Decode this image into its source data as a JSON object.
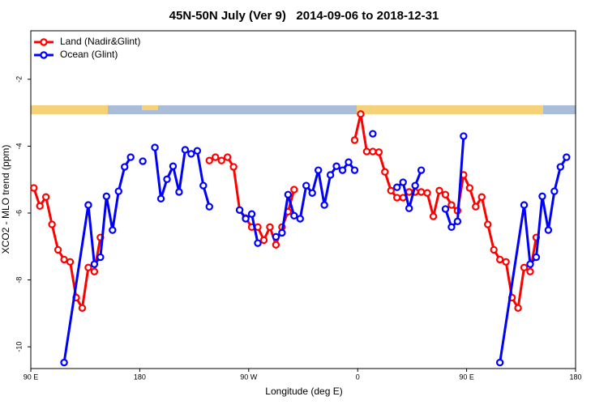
{
  "chart_data": {
    "type": "line",
    "title": "45N-50N July (Ver 9)   2014-09-06 to 2018-12-31",
    "x_label": "Longitude (deg E)",
    "y_label": "XCO2 - MLO trend (ppm)",
    "xlim": [
      90,
      540
    ],
    "ylim": [
      -10.65,
      -0.55
    ],
    "xticks": [
      {
        "value": 90,
        "label": "90 E"
      },
      180,
      {
        "value": 270,
        "label": "90 W"
      },
      {
        "value": 360,
        "label": "0"
      },
      {
        "value": 450,
        "label": "90 E"
      },
      {
        "value": 540,
        "label": "180"
      }
    ],
    "yticks": [
      -10,
      -8,
      -6,
      -4,
      -2
    ],
    "legend": "topleft",
    "series": [
      {
        "name": "Land (Nadir&Glint)",
        "color": "#ff0000",
        "x": [
          92.5,
          97.5,
          102.5,
          107.5,
          112.5,
          117.5,
          122.5,
          127.5,
          132.5,
          137.5,
          142.5,
          147.5,
          152.5,
          237.5,
          242.5,
          247.5,
          252.5,
          257.5,
          262.5,
          267.5,
          272.5,
          277.5,
          282.5,
          287.5,
          292.5,
          297.5,
          302.5,
          307.5,
          312.5,
          357.5,
          362.5,
          367.5,
          372.5,
          377.5,
          382.5,
          387.5,
          392.5,
          397.5,
          402.5,
          407.5,
          412.5,
          417.5,
          422.5,
          427.5,
          432.5,
          437.5,
          442.5,
          447.5,
          452.5,
          457.5,
          462.5,
          467.5,
          472.5,
          477.5,
          482.5,
          487.5,
          492.5,
          497.5,
          502.5,
          507.5
        ],
        "values": [
          -5.25,
          -5.79,
          -5.52,
          -6.34,
          -7.1,
          -7.39,
          -7.46,
          -8.53,
          -8.84,
          -7.63,
          -7.75,
          -6.73,
          null,
          -4.43,
          -4.33,
          -4.43,
          -4.33,
          -4.62,
          -5.91,
          -6.15,
          -6.42,
          -6.42,
          -6.81,
          -6.42,
          -6.95,
          -6.42,
          -5.96,
          -5.3,
          null,
          -3.82,
          -3.04,
          -4.16,
          -4.16,
          -4.18,
          -4.77,
          -5.33,
          -5.54,
          -5.54,
          -5.37,
          -5.37,
          -5.37,
          -5.4,
          -6.1,
          -5.33,
          -5.45,
          -5.76,
          -5.93,
          -4.86,
          -5.25,
          -5.81,
          -5.52,
          -6.34,
          -7.1,
          -7.39,
          -7.46,
          -8.53,
          -8.84,
          -7.63,
          -7.75,
          -6.73
        ]
      },
      {
        "name": "Ocean (Glint)",
        "color": "#0000ff",
        "x": [
          117.5,
          137.5,
          142.5,
          147.5,
          152.5,
          157.5,
          162.5,
          167.5,
          172.5,
          177.5,
          182.5,
          187.5,
          192.5,
          197.5,
          202.5,
          207.5,
          212.5,
          217.5,
          222.5,
          227.5,
          232.5,
          237.5,
          242.5,
          262.5,
          267.5,
          272.5,
          277.5,
          282.5,
          292.5,
          297.5,
          302.5,
          307.5,
          312.5,
          317.5,
          322.5,
          327.5,
          332.5,
          337.5,
          342.5,
          347.5,
          352.5,
          357.5,
          362.5,
          372.5,
          377.5,
          392.5,
          397.5,
          402.5,
          407.5,
          412.5,
          417.5,
          432.5,
          437.5,
          442.5,
          447.5,
          452.5,
          477.5,
          497.5,
          502.5,
          507.5,
          512.5,
          517.5,
          522.5,
          527.5,
          532.5
        ],
        "values": [
          -10.47,
          -5.76,
          -7.53,
          -7.32,
          -5.5,
          -6.51,
          -5.35,
          -4.62,
          -4.33,
          null,
          -4.45,
          null,
          -4.04,
          -5.57,
          -4.99,
          -4.6,
          -5.37,
          -4.11,
          -4.23,
          -4.14,
          -5.18,
          -5.81,
          null,
          -5.91,
          -6.17,
          -6.03,
          -6.9,
          null,
          -6.71,
          -6.59,
          -5.45,
          -6.08,
          -6.17,
          -5.18,
          -5.4,
          -4.72,
          -5.76,
          -4.86,
          -4.6,
          -4.72,
          -4.48,
          -4.72,
          null,
          -3.63,
          null,
          -5.23,
          -5.08,
          -5.86,
          -5.18,
          -4.72,
          null,
          -5.88,
          -6.42,
          -6.25,
          -3.7,
          null,
          -10.47,
          -5.76,
          -7.53,
          -7.32,
          -5.5,
          -6.51,
          -5.35,
          -4.62,
          -4.33
        ]
      }
    ]
  }
}
